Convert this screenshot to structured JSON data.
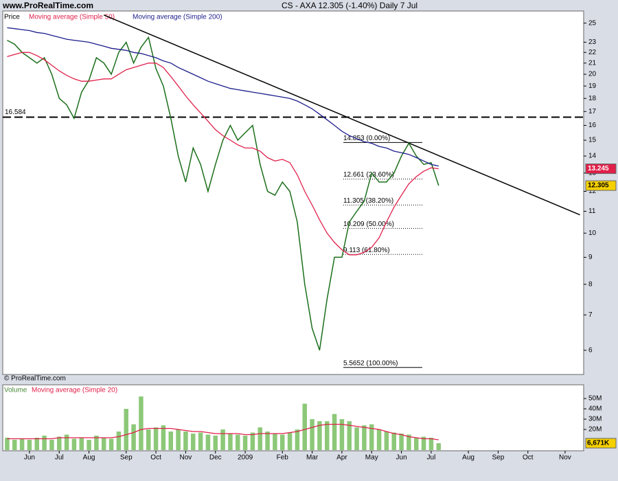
{
  "header": {
    "site": "www.ProRealTime.com",
    "title": "CS - AXA   12.305 (-1.40%)   Daily  7 Jul",
    "watermark": "© ProRealTime.com"
  },
  "chart_data": [
    {
      "type": "line",
      "log_scale": true,
      "categories": [
        null,
        null,
        null,
        "Jun",
        null,
        null,
        null,
        "Jul",
        null,
        null,
        null,
        "Aug",
        null,
        null,
        null,
        null,
        "Sep",
        null,
        null,
        null,
        "Oct",
        null,
        null,
        null,
        "Nov",
        null,
        null,
        null,
        "Dec",
        null,
        null,
        null,
        "2009",
        null,
        null,
        null,
        null,
        "Feb",
        null,
        null,
        null,
        "Mar",
        null,
        null,
        null,
        "Apr",
        null,
        null,
        null,
        "May",
        null,
        null,
        null,
        "Jun",
        null,
        null,
        null,
        "Jul",
        null,
        null,
        null,
        null,
        "Aug",
        null,
        null,
        null,
        "Sep",
        null,
        null,
        null,
        "Oct",
        null,
        null,
        null,
        null,
        "Nov",
        null,
        null
      ],
      "series": [
        {
          "name": "Price",
          "color": "#1a6e1a",
          "label_box": "#f5d000",
          "values": [
            23.2,
            22.8,
            22.0,
            21.5,
            21.0,
            21.5,
            20.0,
            18.0,
            17.5,
            16.5,
            18.5,
            19.5,
            21.5,
            21.0,
            20.0,
            22.0,
            23.0,
            21.0,
            22.5,
            23.5,
            20.5,
            19.0,
            16.5,
            14.0,
            12.5,
            14.5,
            13.5,
            12.0,
            13.5,
            15.0,
            16.0,
            15.0,
            15.5,
            16.0,
            13.5,
            12.0,
            11.8,
            12.5,
            12.0,
            10.5,
            8.0,
            6.6,
            6.0,
            7.5,
            9.0,
            9.0,
            10.5,
            11.0,
            11.5,
            13.0,
            12.5,
            12.5,
            13.0,
            14.0,
            14.8,
            14.0,
            13.5,
            13.6,
            12.305,
            null,
            null,
            null,
            null,
            null,
            null,
            null,
            null,
            null,
            null,
            null,
            null,
            null,
            null,
            null,
            null,
            null,
            null,
            null
          ]
        },
        {
          "name": "Moving average (Simple 50)",
          "color": "#e0204a",
          "label_box": "#e0204a",
          "values": [
            21.6,
            21.8,
            22.0,
            22.0,
            21.7,
            21.3,
            20.8,
            20.3,
            19.9,
            19.6,
            19.4,
            19.4,
            19.5,
            19.6,
            19.6,
            20.0,
            20.4,
            20.6,
            20.8,
            21.0,
            21.0,
            20.6,
            19.8,
            19.0,
            18.2,
            17.5,
            16.9,
            16.3,
            15.7,
            15.3,
            15.0,
            14.7,
            14.5,
            14.5,
            14.3,
            13.9,
            13.7,
            13.8,
            13.6,
            12.9,
            12.0,
            11.3,
            10.6,
            10.0,
            9.6,
            9.3,
            9.1,
            9.1,
            9.2,
            9.4,
            9.8,
            10.5,
            11.2,
            11.8,
            12.4,
            12.8,
            13.1,
            13.3,
            13.245,
            null,
            null,
            null,
            null,
            null,
            null,
            null,
            null,
            null,
            null,
            null,
            null,
            null,
            null,
            null,
            null,
            null,
            null,
            null
          ]
        },
        {
          "name": "Moving average (Simple 200)",
          "color": "#1c1c8c",
          "values": [
            24.5,
            24.4,
            24.3,
            24.2,
            24.0,
            23.9,
            23.7,
            23.5,
            23.3,
            23.2,
            23.1,
            23.0,
            22.8,
            22.6,
            22.4,
            22.3,
            22.2,
            22.0,
            21.9,
            21.7,
            21.5,
            21.2,
            21.0,
            20.6,
            20.3,
            20.0,
            19.7,
            19.4,
            19.2,
            19.0,
            18.8,
            18.7,
            18.6,
            18.5,
            18.4,
            18.3,
            18.2,
            18.1,
            18.0,
            17.8,
            17.5,
            17.2,
            16.8,
            16.4,
            16.0,
            15.6,
            15.3,
            15.1,
            14.9,
            14.8,
            14.6,
            14.5,
            14.3,
            14.2,
            14.1,
            13.9,
            13.7,
            13.5,
            13.4,
            null,
            null,
            null,
            null,
            null,
            null,
            null,
            null,
            null,
            null,
            null,
            null,
            null,
            null,
            null,
            null,
            null,
            null,
            null
          ]
        }
      ],
      "ylim": [
        5.43,
        26.2
      ],
      "yticks": [
        6,
        7,
        8,
        9,
        10,
        11,
        12,
        13,
        14,
        15,
        16,
        17,
        18,
        19,
        20,
        21,
        22,
        23,
        25
      ],
      "hline": {
        "value": 16.584,
        "color": "#000000"
      },
      "trendline": {
        "values": [
          25.9,
          10.83
        ],
        "color": "#000000"
      },
      "fib_levels": [
        {
          "value": 14.853,
          "label": "14.853 (0.00%)"
        },
        {
          "value": 12.661,
          "label": "12.661 (23.60%)"
        },
        {
          "value": 11.305,
          "label": "11.305 (38.20%)"
        },
        {
          "value": 10.209,
          "label": "10.209 (50.00%)"
        },
        {
          "value": 9.113,
          "label": "9.113 (61.80%)"
        },
        {
          "value": 5.5652,
          "label": "5.5652 (100.00%)"
        }
      ]
    },
    {
      "type": "bar",
      "series": [
        {
          "name": "Volume",
          "color": "#8cc878",
          "values": [
            12,
            10,
            11,
            10,
            12,
            14,
            10,
            13,
            15,
            11,
            12,
            10,
            14,
            12,
            11,
            18,
            40,
            25,
            52,
            20,
            22,
            24,
            18,
            20,
            18,
            16,
            17,
            15,
            14,
            20,
            16,
            15,
            14,
            17,
            22,
            18,
            16,
            15,
            17,
            20,
            45,
            30,
            28,
            28,
            35,
            30,
            28,
            22,
            24,
            25,
            20,
            18,
            17,
            16,
            15,
            12,
            13,
            12,
            6.671,
            null,
            null,
            null,
            null,
            null,
            null,
            null,
            null,
            null,
            null,
            null,
            null,
            null,
            null,
            null,
            null,
            null,
            null,
            null
          ]
        },
        {
          "name": "Moving average (Simple 20)",
          "color": "#e0204a",
          "values": [
            11,
            11,
            11,
            11,
            11,
            11,
            11,
            12,
            12,
            12,
            12,
            12,
            12,
            12,
            12,
            13,
            15,
            17,
            20,
            21,
            21,
            21,
            21,
            20,
            19,
            18,
            18,
            17,
            16,
            16,
            16,
            16,
            15,
            15,
            16,
            16,
            16,
            16,
            17,
            18,
            20,
            22,
            24,
            25,
            25,
            25,
            24,
            23,
            22,
            21,
            20,
            18,
            16,
            15,
            13,
            12,
            11,
            11,
            10,
            null,
            null,
            null,
            null,
            null,
            null,
            null,
            null,
            null,
            null,
            null,
            null,
            null,
            null,
            null,
            null,
            null,
            null,
            null
          ]
        }
      ],
      "ylim": [
        0,
        62
      ],
      "yticks": [
        {
          "value": 20,
          "label": "20M"
        },
        {
          "value": 30,
          "label": "30M"
        },
        {
          "value": 40,
          "label": "40M"
        },
        {
          "value": 50,
          "label": "50M"
        }
      ],
      "current": {
        "value": 6.671,
        "label": "6,671K",
        "color": "#f5d000"
      }
    }
  ]
}
